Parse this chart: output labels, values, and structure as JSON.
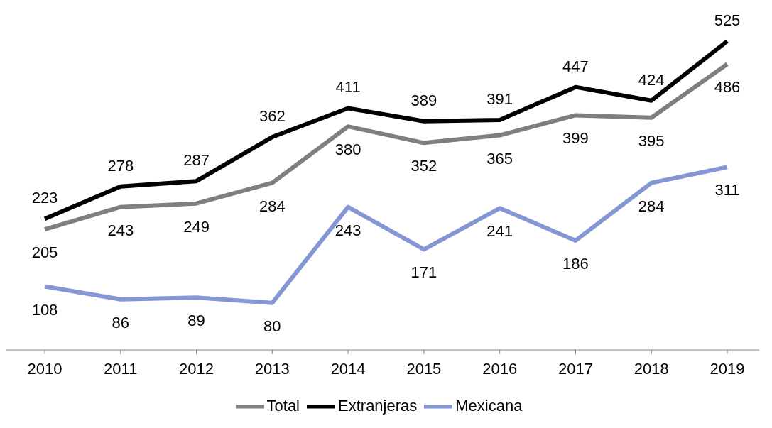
{
  "chart_data": {
    "type": "line",
    "categories": [
      "2010",
      "2011",
      "2012",
      "2013",
      "2014",
      "2015",
      "2016",
      "2017",
      "2018",
      "2019"
    ],
    "series": [
      {
        "name": "Total",
        "color": "#7f7f7f",
        "values": [
          205,
          243,
          249,
          284,
          380,
          352,
          365,
          399,
          395,
          486
        ]
      },
      {
        "name": "Extranjeras",
        "color": "#000000",
        "values": [
          223,
          278,
          287,
          362,
          411,
          389,
          391,
          447,
          424,
          525
        ]
      },
      {
        "name": "Mexicana",
        "color": "#8497d4",
        "values": [
          108,
          86,
          89,
          80,
          243,
          171,
          241,
          186,
          284,
          311
        ]
      }
    ],
    "data_labels": true,
    "legend": "bottom",
    "grid": false,
    "marker": "none",
    "line_style": "solid",
    "tick_labels": "x"
  }
}
